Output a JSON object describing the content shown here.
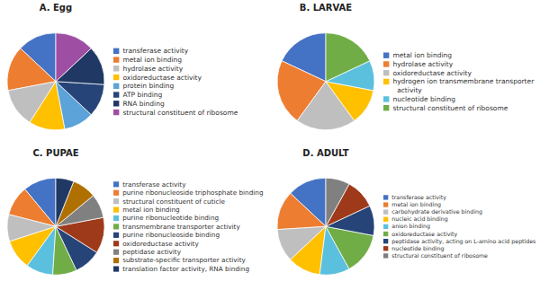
{
  "chart_data": [
    {
      "type": "pie",
      "title": "A. Egg",
      "categories": [
        "transferase activity",
        "metal ion binding",
        "hydrolase activity",
        "oxidoreductase activity",
        "protein binding",
        "ATP binding",
        "RNA binding",
        "structural constituent of ribosome"
      ],
      "values": [
        13,
        15,
        13,
        12,
        10,
        11,
        13,
        13
      ],
      "colors": [
        "#4472C4",
        "#ED7D31",
        "#BFBFBF",
        "#FFC000",
        "#5BA3D9",
        "#264478",
        "#1F3864",
        "#9E4FA3"
      ]
    },
    {
      "type": "pie",
      "title": "B. LARVAE",
      "categories": [
        "metal ion binding",
        "hydrolase activity",
        "oxidoreductase activity",
        "hydrogen ion transmembrane transporter\n  activity",
        "nucleotide binding",
        "structural constituent of ribosome"
      ],
      "values": [
        18,
        22,
        20,
        12,
        10,
        18
      ],
      "colors": [
        "#4472C4",
        "#ED7D31",
        "#BFBFBF",
        "#FFC000",
        "#5BC0DE",
        "#70AD47"
      ]
    },
    {
      "type": "pie",
      "title": "C. PUPAE",
      "categories": [
        "transferase activity",
        "purine ribonucleoside triphosphate binding",
        "structural constituent of cuticle",
        "metal ion binding",
        "purine ribonucleotide binding",
        "transmembrane transporter activity",
        "purine ribonucleoside binding",
        "oxidoreductase activity",
        "peptidase activity",
        "substrate-specific transporter activity",
        "translation factor activity, RNA binding"
      ],
      "values": [
        11,
        10,
        9,
        10,
        9,
        8,
        9,
        12,
        8,
        8,
        6
      ],
      "colors": [
        "#4472C4",
        "#ED7D31",
        "#BFBFBF",
        "#FFC000",
        "#5BC0DE",
        "#70AD47",
        "#264478",
        "#9E3A1A",
        "#808080",
        "#B07000",
        "#1F3864"
      ]
    },
    {
      "type": "pie",
      "title": "D. ADULT",
      "categories": [
        "transferase activity",
        "metal ion binding",
        "carbohydrate derivative binding",
        "nucleic acid binding",
        "anion binding",
        "oxidoreductase activity",
        "peptidase activity, acting on L-amino acid peptides",
        "nucleotide binding",
        "structural constituent of ribosome"
      ],
      "values": [
        13,
        13,
        11,
        11,
        10,
        14,
        10,
        10,
        8
      ],
      "colors": [
        "#4472C4",
        "#ED7D31",
        "#BFBFBF",
        "#FFC000",
        "#5BC0DE",
        "#70AD47",
        "#264478",
        "#9E3A1A",
        "#808080"
      ]
    }
  ]
}
